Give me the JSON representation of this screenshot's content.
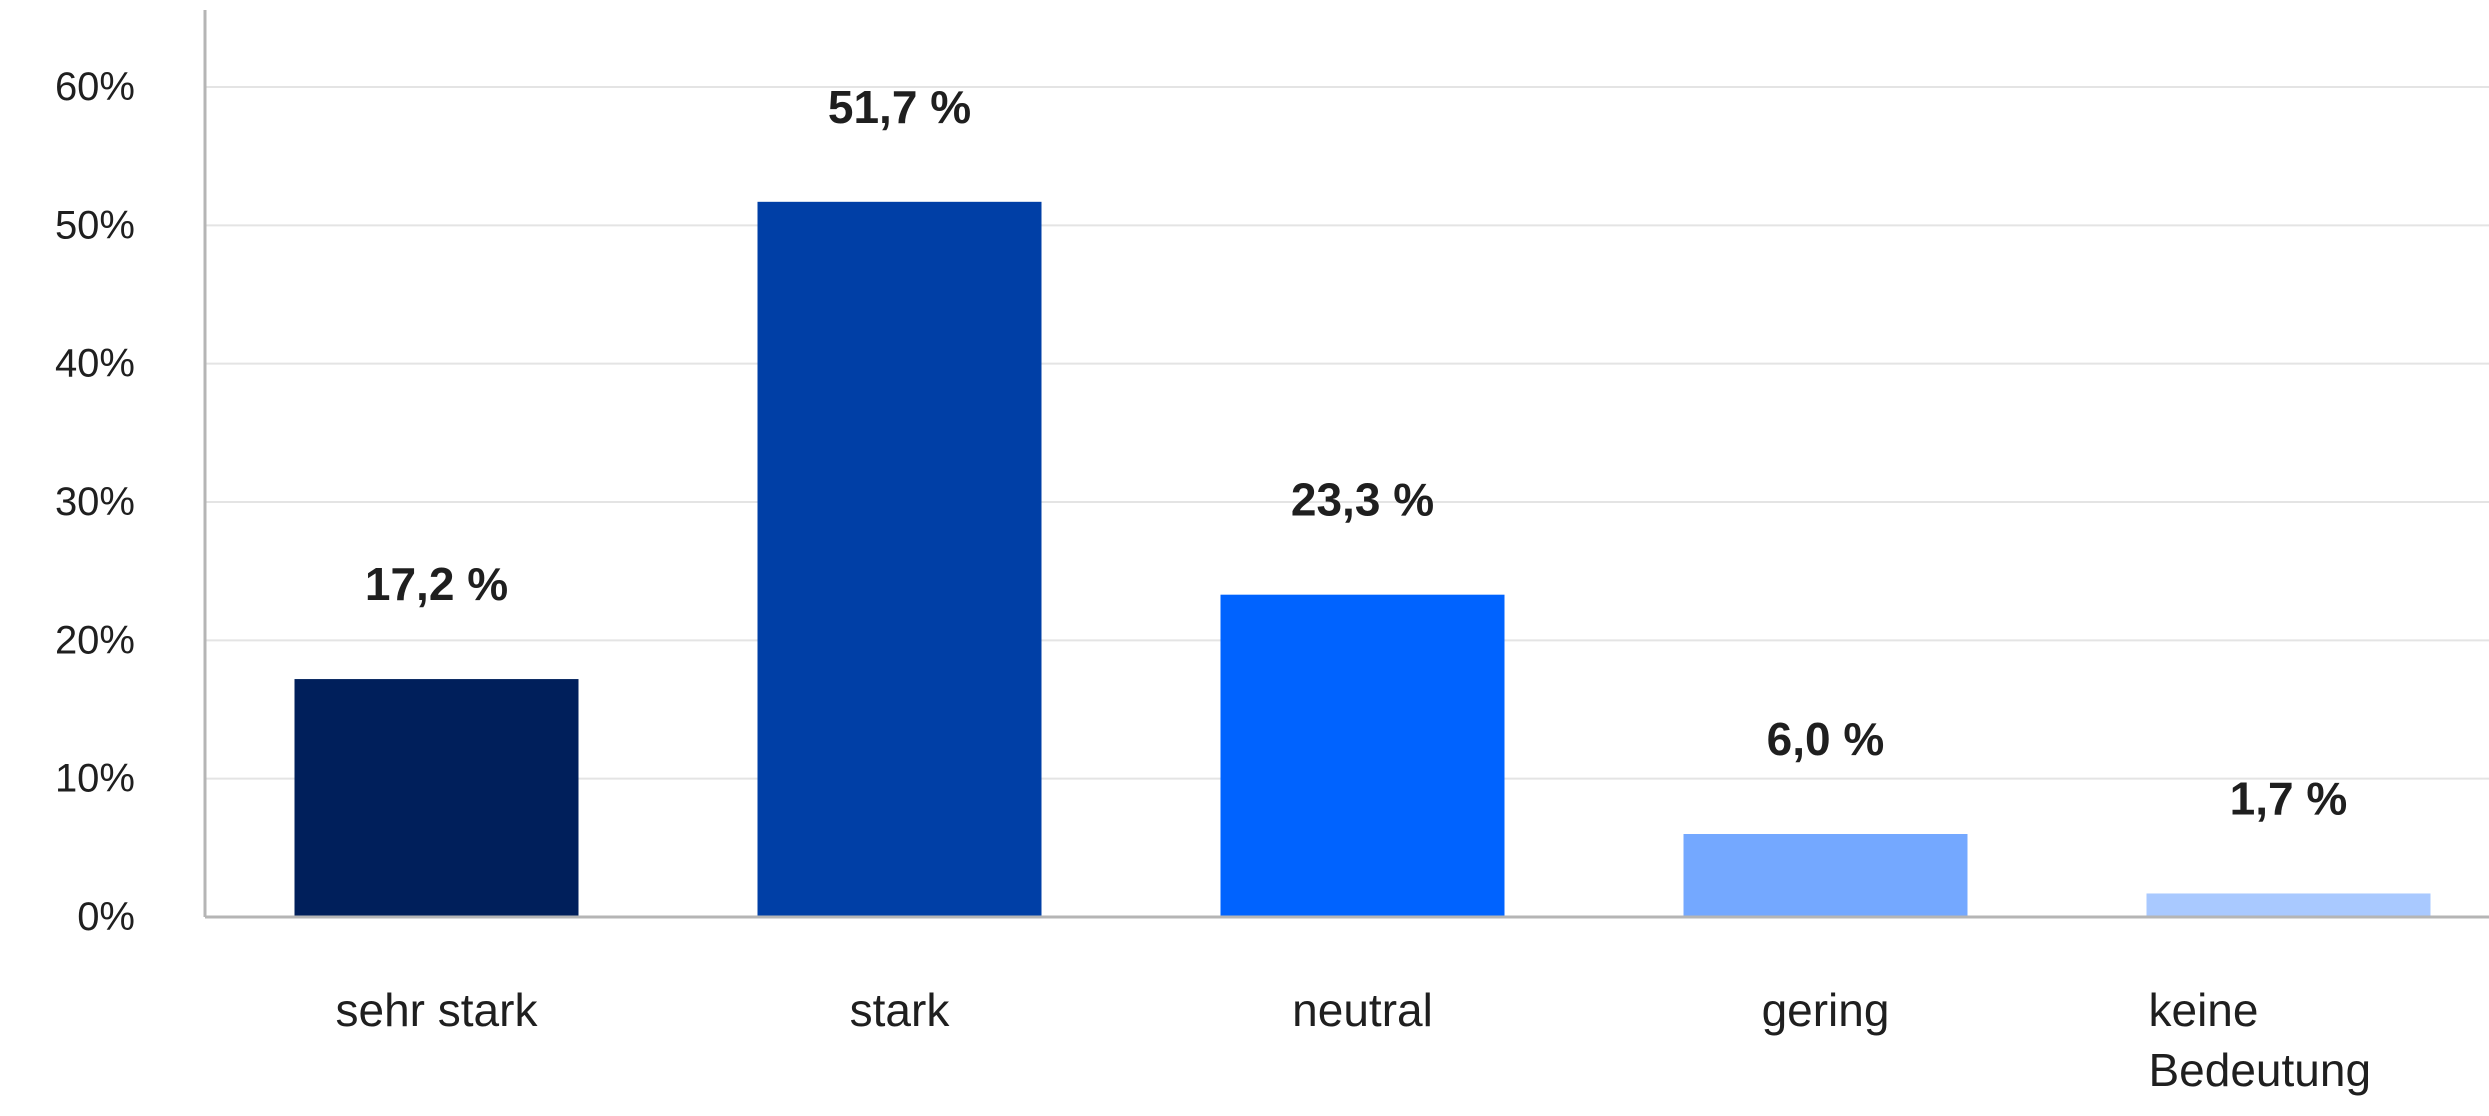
{
  "chart_data": {
    "type": "bar",
    "categories": [
      "sehr stark",
      "stark",
      "neutral",
      "gering",
      "keine Bedeutung"
    ],
    "category_label_lines": [
      [
        "sehr stark"
      ],
      [
        "stark"
      ],
      [
        "neutral"
      ],
      [
        "gering"
      ],
      [
        "keine",
        "Bedeutung"
      ]
    ],
    "values": [
      17.2,
      51.7,
      23.3,
      6.0,
      1.7
    ],
    "value_labels": [
      "17,2 %",
      "51,7 %",
      "23,3 %",
      "6,0 %",
      "1,7 %"
    ],
    "bar_colors": [
      "#001f5b",
      "#003fa6",
      "#0063ff",
      "#74a8ff",
      "#a9c9ff"
    ],
    "y_ticks": [
      0,
      10,
      20,
      30,
      40,
      50,
      60
    ],
    "y_tick_labels": [
      "0%",
      "10%",
      "20%",
      "30%",
      "40%",
      "50%",
      "60%"
    ],
    "ylim": [
      0,
      60
    ],
    "grid": true,
    "legend": "none",
    "colors": {
      "grid": "#e4e4e4",
      "axis": "#b5b5b5",
      "text": "#1f1f1f"
    }
  }
}
